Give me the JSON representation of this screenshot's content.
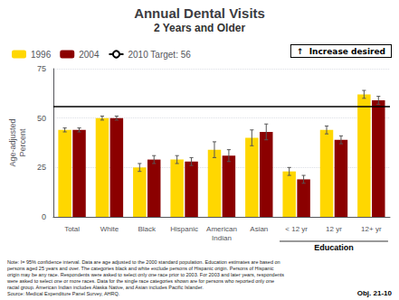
{
  "chart_data": {
    "type": "bar",
    "title": "Annual Dental Visits",
    "subtitle": "2 Years and Older",
    "ylabel": "Age-adjusted\nPercent",
    "categories": [
      "Total",
      "White",
      "Black",
      "Hispanic",
      "American\nIndian",
      "Asian",
      "< 12 yr",
      "12 yr",
      "12+ yr"
    ],
    "series": [
      {
        "name": "1996",
        "color": "#FFD700",
        "values": [
          44,
          50,
          25,
          29,
          34,
          40,
          23,
          44,
          62
        ],
        "errors": [
          1,
          1,
          2,
          2,
          4,
          4,
          2,
          2,
          2
        ]
      },
      {
        "name": "2004",
        "color": "#8B0000",
        "values": [
          44,
          50,
          29,
          28,
          31,
          43,
          19,
          39,
          59
        ],
        "errors": [
          1,
          1,
          2,
          2,
          3,
          4,
          2,
          2,
          2
        ]
      }
    ],
    "reference_line": {
      "value": 56,
      "label": "2010 Target: 56",
      "color": "#000000"
    },
    "groups": [
      {
        "label": "Education",
        "categories": [
          "< 12 yr",
          "12 yr",
          "12+ yr"
        ]
      }
    ],
    "annotations": [
      "↑  Increase desired",
      "Obj. 21-10"
    ],
    "note": "Note: I= 95% confidence interval. Data are age adjusted to the 2000 standard population. Education estimates are based on\npersons aged 25 years and over. The categories black and white exclude persons of Hispanic origin. Persons of Hispanic\norigin may be any race. Respondents were asked to select only one race prior to 2003. For 2003 and later years, respondents\nwere asked to select one or more races. Data for the single race categories shown are for persons who reported only one\nracial group. American Indian includes Alaska Native, and Asian includes Pacific Islander.\nSource: Medical Expenditure Panel Survey, AHRQ.",
    "ylim": [
      0,
      75
    ],
    "yticks": [
      0,
      25,
      50,
      75
    ],
    "grid": true,
    "legend": "top"
  }
}
